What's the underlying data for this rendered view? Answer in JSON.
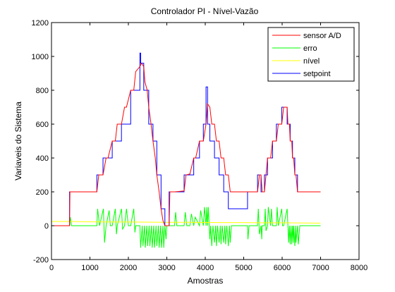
{
  "chart_data": {
    "type": "line",
    "title": "Controlador PI - Nível-Vazão",
    "xlabel": "Amostras",
    "ylabel": "Variaveis do Sistema",
    "xlim": [
      0,
      8000
    ],
    "ylim": [
      -200,
      1200
    ],
    "xticks": [
      0,
      1000,
      2000,
      3000,
      4000,
      5000,
      6000,
      7000,
      8000
    ],
    "yticks": [
      -200,
      0,
      200,
      400,
      600,
      800,
      1000,
      1200
    ],
    "grid": false,
    "legend_position": "top-right",
    "series": [
      {
        "name": "sensor A/D",
        "color": "#ff0000",
        "x": [
          0,
          470,
          480,
          1180,
          1230,
          1340,
          1420,
          1470,
          1580,
          1660,
          1710,
          1820,
          1900,
          1950,
          2060,
          2140,
          2190,
          2300,
          2340,
          2400,
          2430,
          2490,
          2530,
          2590,
          2640,
          2700,
          2740,
          2800,
          2850,
          2900,
          2950,
          3000,
          3060,
          3080,
          3200,
          3450,
          3500,
          3600,
          3700,
          3750,
          3850,
          3950,
          4020,
          4060,
          4120,
          4170,
          4240,
          4290,
          4360,
          4410,
          4480,
          4530,
          4600,
          4650,
          4760,
          5100,
          5140,
          5360,
          5410,
          5450,
          5480,
          5540,
          5580,
          5620,
          5700,
          5750,
          5850,
          5900,
          5990,
          6040,
          6130,
          6150,
          6190,
          6210,
          6250,
          6270,
          6300,
          6330,
          6360,
          6400,
          6460,
          6520,
          7000
        ],
        "y": [
          0,
          0,
          200,
          200,
          300,
          300,
          400,
          400,
          500,
          500,
          600,
          600,
          700,
          700,
          800,
          800,
          910,
          940,
          960,
          940,
          850,
          800,
          700,
          600,
          500,
          400,
          300,
          200,
          100,
          30,
          0,
          0,
          0,
          200,
          200,
          205,
          300,
          305,
          400,
          400,
          500,
          500,
          600,
          720,
          700,
          600,
          600,
          500,
          500,
          400,
          400,
          300,
          300,
          200,
          200,
          200,
          200,
          200,
          300,
          300,
          200,
          200,
          300,
          400,
          400,
          500,
          500,
          600,
          600,
          700,
          700,
          600,
          600,
          500,
          500,
          400,
          400,
          300,
          300,
          200,
          200,
          200,
          200
        ]
      },
      {
        "name": "erro",
        "color": "#00ff00",
        "x": [
          0,
          470,
          490,
          520,
          1180,
          1200,
          1250,
          1350,
          1380,
          1420,
          1500,
          1530,
          1580,
          1660,
          1690,
          1710,
          1820,
          1850,
          1900,
          1950,
          2000,
          2060,
          2140,
          2170,
          2190,
          2300,
          2320,
          2360,
          2380,
          2420,
          2440,
          2480,
          2500,
          2540,
          2560,
          2600,
          2620,
          2660,
          2680,
          2720,
          2740,
          2780,
          2800,
          2840,
          2860,
          2900,
          2920,
          2950,
          2980,
          3000,
          3200,
          3230,
          3260,
          3450,
          3480,
          3520,
          3600,
          3640,
          3700,
          3740,
          3850,
          3880,
          3950,
          3980,
          4020,
          4040,
          4060,
          4080,
          4120,
          4140,
          4170,
          4200,
          4240,
          4270,
          4290,
          4320,
          4360,
          4390,
          4410,
          4440,
          4480,
          4510,
          4530,
          4560,
          4600,
          4630,
          4650,
          4680,
          4760,
          5100,
          5110,
          5140,
          5360,
          5380,
          5410,
          5450,
          5470,
          5480,
          5540,
          5560,
          5580,
          5620,
          5640,
          5700,
          5720,
          5750,
          5850,
          5870,
          5900,
          5990,
          6010,
          6040,
          6130,
          6150,
          6170,
          6190,
          6210,
          6230,
          6250,
          6270,
          6290,
          6300,
          6330,
          6350,
          6360,
          6400,
          6420,
          6460,
          6520,
          7000
        ],
        "y": [
          0,
          0,
          50,
          0,
          0,
          100,
          0,
          100,
          -100,
          0,
          90,
          0,
          0,
          100,
          -50,
          0,
          100,
          -20,
          0,
          100,
          0,
          0,
          100,
          -40,
          0,
          0,
          -130,
          0,
          -120,
          0,
          -130,
          0,
          -120,
          0,
          -120,
          0,
          -130,
          0,
          -130,
          0,
          -120,
          0,
          -130,
          0,
          -130,
          0,
          -130,
          0,
          -80,
          0,
          0,
          80,
          0,
          0,
          80,
          0,
          0,
          70,
          0,
          50,
          0,
          90,
          0,
          110,
          0,
          110,
          0,
          110,
          -80,
          0,
          -120,
          0,
          -100,
          0,
          -120,
          0,
          -100,
          0,
          -110,
          0,
          -100,
          0,
          -110,
          0,
          -120,
          0,
          -100,
          0,
          0,
          0,
          -80,
          0,
          0,
          100,
          -50,
          0,
          -80,
          0,
          0,
          100,
          -30,
          0,
          110,
          0,
          100,
          0,
          0,
          110,
          0,
          100,
          0,
          0,
          100,
          0,
          -100,
          0,
          -110,
          0,
          -110,
          0,
          -100,
          0,
          -120,
          0,
          -100,
          0,
          -110,
          0,
          0,
          0
        ]
      },
      {
        "name": "nível",
        "color": "#ffff00",
        "x": [
          0,
          500,
          1000,
          1500,
          2000,
          2500,
          3000,
          3500,
          4000,
          4500,
          5000,
          5500,
          6000,
          6500,
          7000
        ],
        "y": [
          25,
          25,
          23,
          22,
          22,
          21,
          20,
          20,
          19,
          18,
          18,
          17,
          17,
          16,
          15
        ]
      },
      {
        "name": "setpoint",
        "color": "#0000ff",
        "x": [
          0,
          470,
          470,
          1180,
          1180,
          1340,
          1340,
          1580,
          1580,
          1820,
          1820,
          2060,
          2060,
          2300,
          2300,
          2320,
          2320,
          2400,
          2400,
          2530,
          2530,
          2640,
          2640,
          2740,
          2740,
          2850,
          2850,
          2950,
          2950,
          3060,
          3060,
          3450,
          3450,
          3700,
          3700,
          3850,
          3850,
          3950,
          3950,
          4020,
          4020,
          4060,
          4060,
          4120,
          4120,
          4240,
          4240,
          4360,
          4360,
          4480,
          4480,
          4600,
          4600,
          5100,
          5100,
          5360,
          5360,
          5450,
          5450,
          5540,
          5540,
          5620,
          5620,
          5750,
          5750,
          5850,
          5850,
          5990,
          5990,
          6130,
          6130,
          6210,
          6210,
          6270,
          6270,
          6330,
          6330,
          6400,
          6400,
          7000
        ],
        "y": [
          0,
          0,
          200,
          200,
          300,
          300,
          400,
          400,
          500,
          500,
          600,
          600,
          800,
          800,
          1020,
          1020,
          960,
          960,
          800,
          800,
          600,
          600,
          500,
          500,
          300,
          300,
          100,
          100,
          0,
          0,
          200,
          200,
          300,
          300,
          400,
          400,
          500,
          500,
          600,
          600,
          820,
          820,
          600,
          600,
          500,
          500,
          400,
          400,
          300,
          300,
          200,
          200,
          100,
          100,
          200,
          200,
          300,
          300,
          200,
          200,
          300,
          300,
          400,
          400,
          500,
          500,
          600,
          600,
          700,
          700,
          600,
          600,
          500,
          500,
          400,
          400,
          300,
          300,
          200,
          200
        ]
      }
    ]
  }
}
